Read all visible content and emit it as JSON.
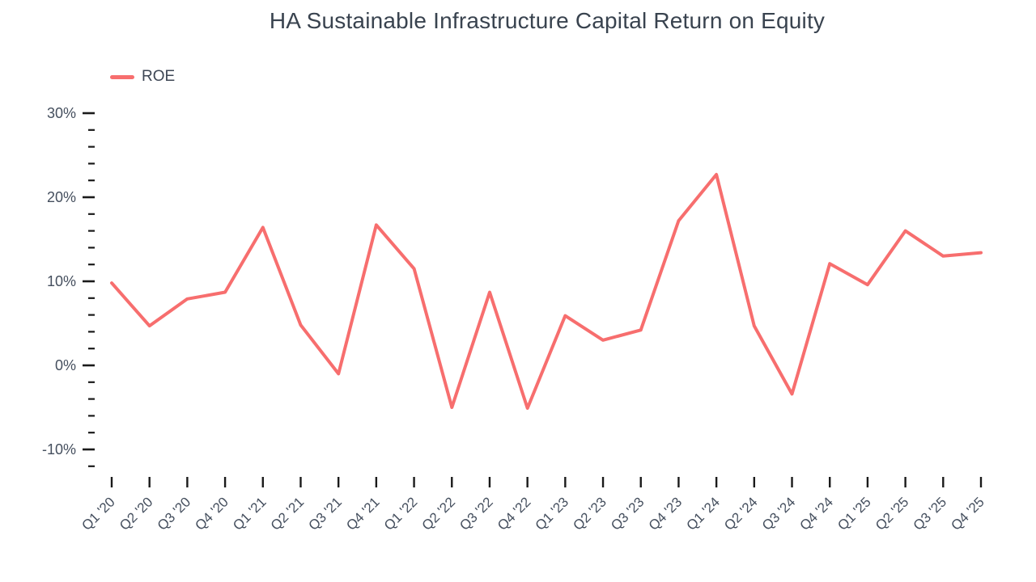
{
  "header": {
    "title": "HA Sustainable Infrastructure Capital Return on Equity"
  },
  "legend": {
    "items": [
      {
        "label": "ROE",
        "color": "#f76e6e"
      }
    ]
  },
  "colors": {
    "series_line": "#f76e6e",
    "title_text": "#39434f",
    "axis_text": "#454f5e",
    "tick_mark": "#1a1a1a",
    "background": "#ffffff"
  },
  "chart_data": {
    "type": "line",
    "title": "HA Sustainable Infrastructure Capital Return on Equity",
    "xlabel": "",
    "ylabel": "",
    "grid": false,
    "legend_position": "top-left",
    "categories": [
      "Q1 '20",
      "Q2 '20",
      "Q3 '20",
      "Q4 '20",
      "Q1 '21",
      "Q2 '21",
      "Q3 '21",
      "Q4 '21",
      "Q1 '22",
      "Q2 '22",
      "Q3 '22",
      "Q4 '22",
      "Q1 '23",
      "Q2 '23",
      "Q3 '23",
      "Q4 '23",
      "Q1 '24",
      "Q2 '24",
      "Q3 '24",
      "Q4 '24",
      "Q1 '25",
      "Q2 '25",
      "Q3 '25",
      "Q4 '25"
    ],
    "series": [
      {
        "name": "ROE",
        "color": "#f76e6e",
        "values": [
          9.8,
          4.7,
          7.9,
          8.7,
          16.4,
          4.8,
          -1.0,
          16.7,
          11.5,
          -5.0,
          8.7,
          -5.1,
          5.9,
          3.0,
          4.2,
          17.2,
          22.7,
          4.7,
          -3.4,
          12.1,
          9.6,
          16.0,
          13.0,
          13.4
        ]
      }
    ],
    "y_axis": {
      "unit": "%",
      "tick_min": -12,
      "tick_max": 30,
      "minor_step": 2,
      "major_step": 10,
      "major_tick_labels": [
        "30%",
        "20%",
        "10%",
        "0%",
        "-10%"
      ]
    },
    "ylim": [
      -12,
      30
    ]
  }
}
